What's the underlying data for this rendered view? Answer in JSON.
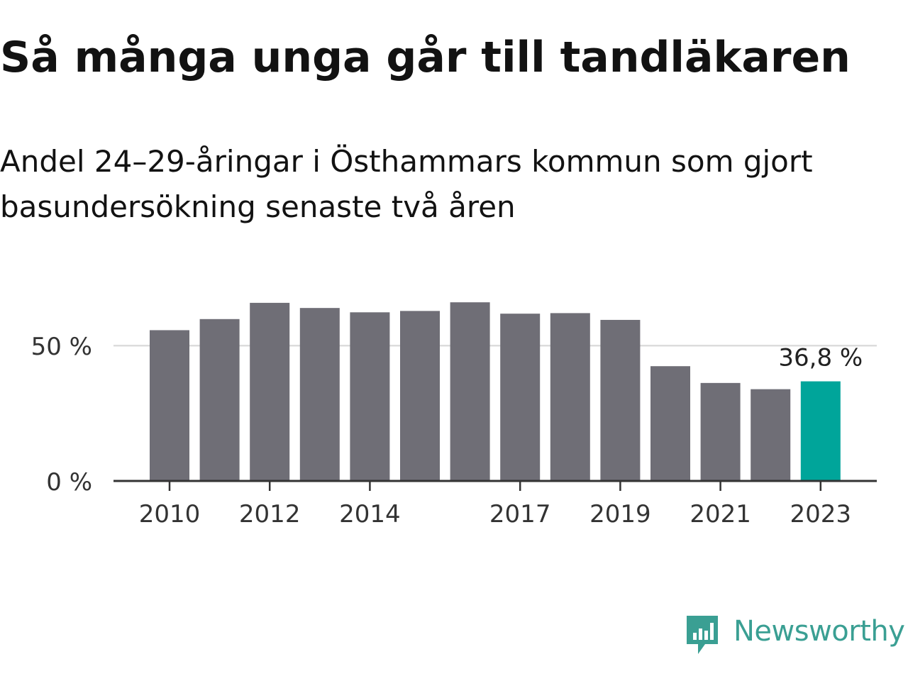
{
  "title": "Så många unga går till tandläkaren",
  "subtitle": "Andel 24–29-åringar i Östhammars kommun som gjort basundersökning senaste två åren",
  "chart_data": {
    "type": "bar",
    "categories": [
      "2010",
      "2011",
      "2012",
      "2013",
      "2014",
      "2015",
      "2016",
      "2017",
      "2018",
      "2019",
      "2020",
      "2021",
      "2022",
      "2023"
    ],
    "values": [
      55.7,
      59.8,
      65.8,
      63.9,
      62.3,
      62.8,
      66.0,
      61.8,
      62.0,
      59.5,
      42.4,
      36.2,
      33.9,
      36.8
    ],
    "x_tick_labels": [
      "2010",
      "2012",
      "2014",
      "2017",
      "2019",
      "2021",
      "2023"
    ],
    "y_ticks": [
      {
        "value": 0,
        "label": "0 %"
      },
      {
        "value": 50,
        "label": "50 %"
      }
    ],
    "ylim": [
      0,
      70
    ],
    "highlight_label": "36,8 %",
    "highlight_index": 13,
    "grid": true,
    "colors": {
      "bar": "#6f6e76",
      "highlight": "#00a59a",
      "grid": "#dcdcdc",
      "axis": "#333333"
    }
  },
  "logo": {
    "text": "Newsworthy",
    "color": "#3a9f93"
  }
}
